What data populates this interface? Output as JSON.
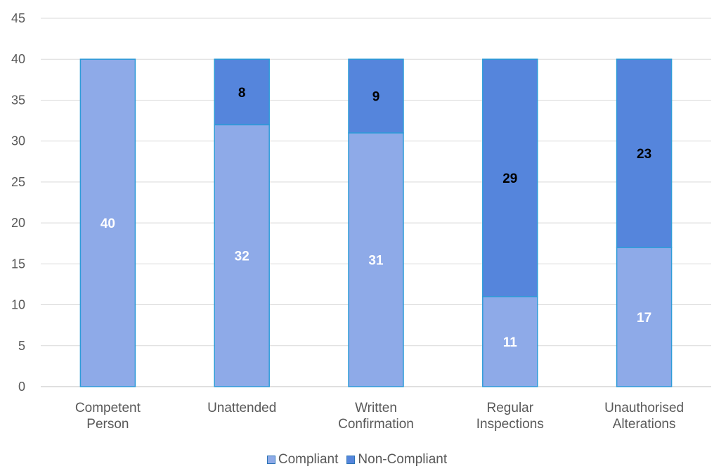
{
  "chart_data": {
    "type": "bar",
    "stacked": true,
    "categories": [
      [
        "Competent",
        "Person"
      ],
      [
        "Unattended"
      ],
      [
        "Written",
        "Confirmation"
      ],
      [
        "Regular",
        "Inspections"
      ],
      [
        "Unauthorised",
        "Alterations"
      ]
    ],
    "series": [
      {
        "name": "Compliant",
        "values": [
          40,
          32,
          31,
          11,
          17
        ],
        "color": "#8eaae8",
        "label_color": "#ffffff"
      },
      {
        "name": "Non-Compliant",
        "values": [
          0,
          8,
          9,
          29,
          23
        ],
        "color": "#5585dc",
        "label_color": "#000000"
      }
    ],
    "ylim": [
      0,
      45
    ],
    "yticks": [
      0,
      5,
      10,
      15,
      20,
      25,
      30,
      35,
      40,
      45
    ],
    "grid": true,
    "legend_position": "bottom",
    "title": "",
    "xlabel": "",
    "ylabel": ""
  }
}
